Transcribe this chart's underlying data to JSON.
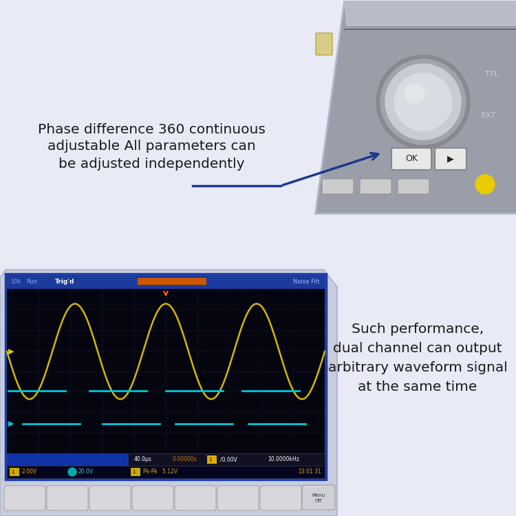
{
  "bg_color": "#e8eaf6",
  "title_text1": "Phase difference 360 continuous",
  "title_text2": "adjustable All parameters can",
  "title_text3": "be adjusted independently",
  "desc_text1": "Such performance,",
  "desc_text2": "dual channel can output",
  "desc_text3": "arbitrary waveform signal",
  "desc_text4": "at the same time",
  "text_color": "#1a1a1a",
  "font_size_title": 14.5,
  "font_size_desc": 14.5,
  "scope_bg": "#050510",
  "scope_header_bg": "#1a3a9c",
  "scope_yellow_wave_color": "#d4b800",
  "scope_cyan_wave_color": "#00c8d4",
  "scope_grid_color": "#222244",
  "arrow_color": "#1a3a8c",
  "device_bg": "#9a9ea8",
  "device_border": "#b0b8cc"
}
